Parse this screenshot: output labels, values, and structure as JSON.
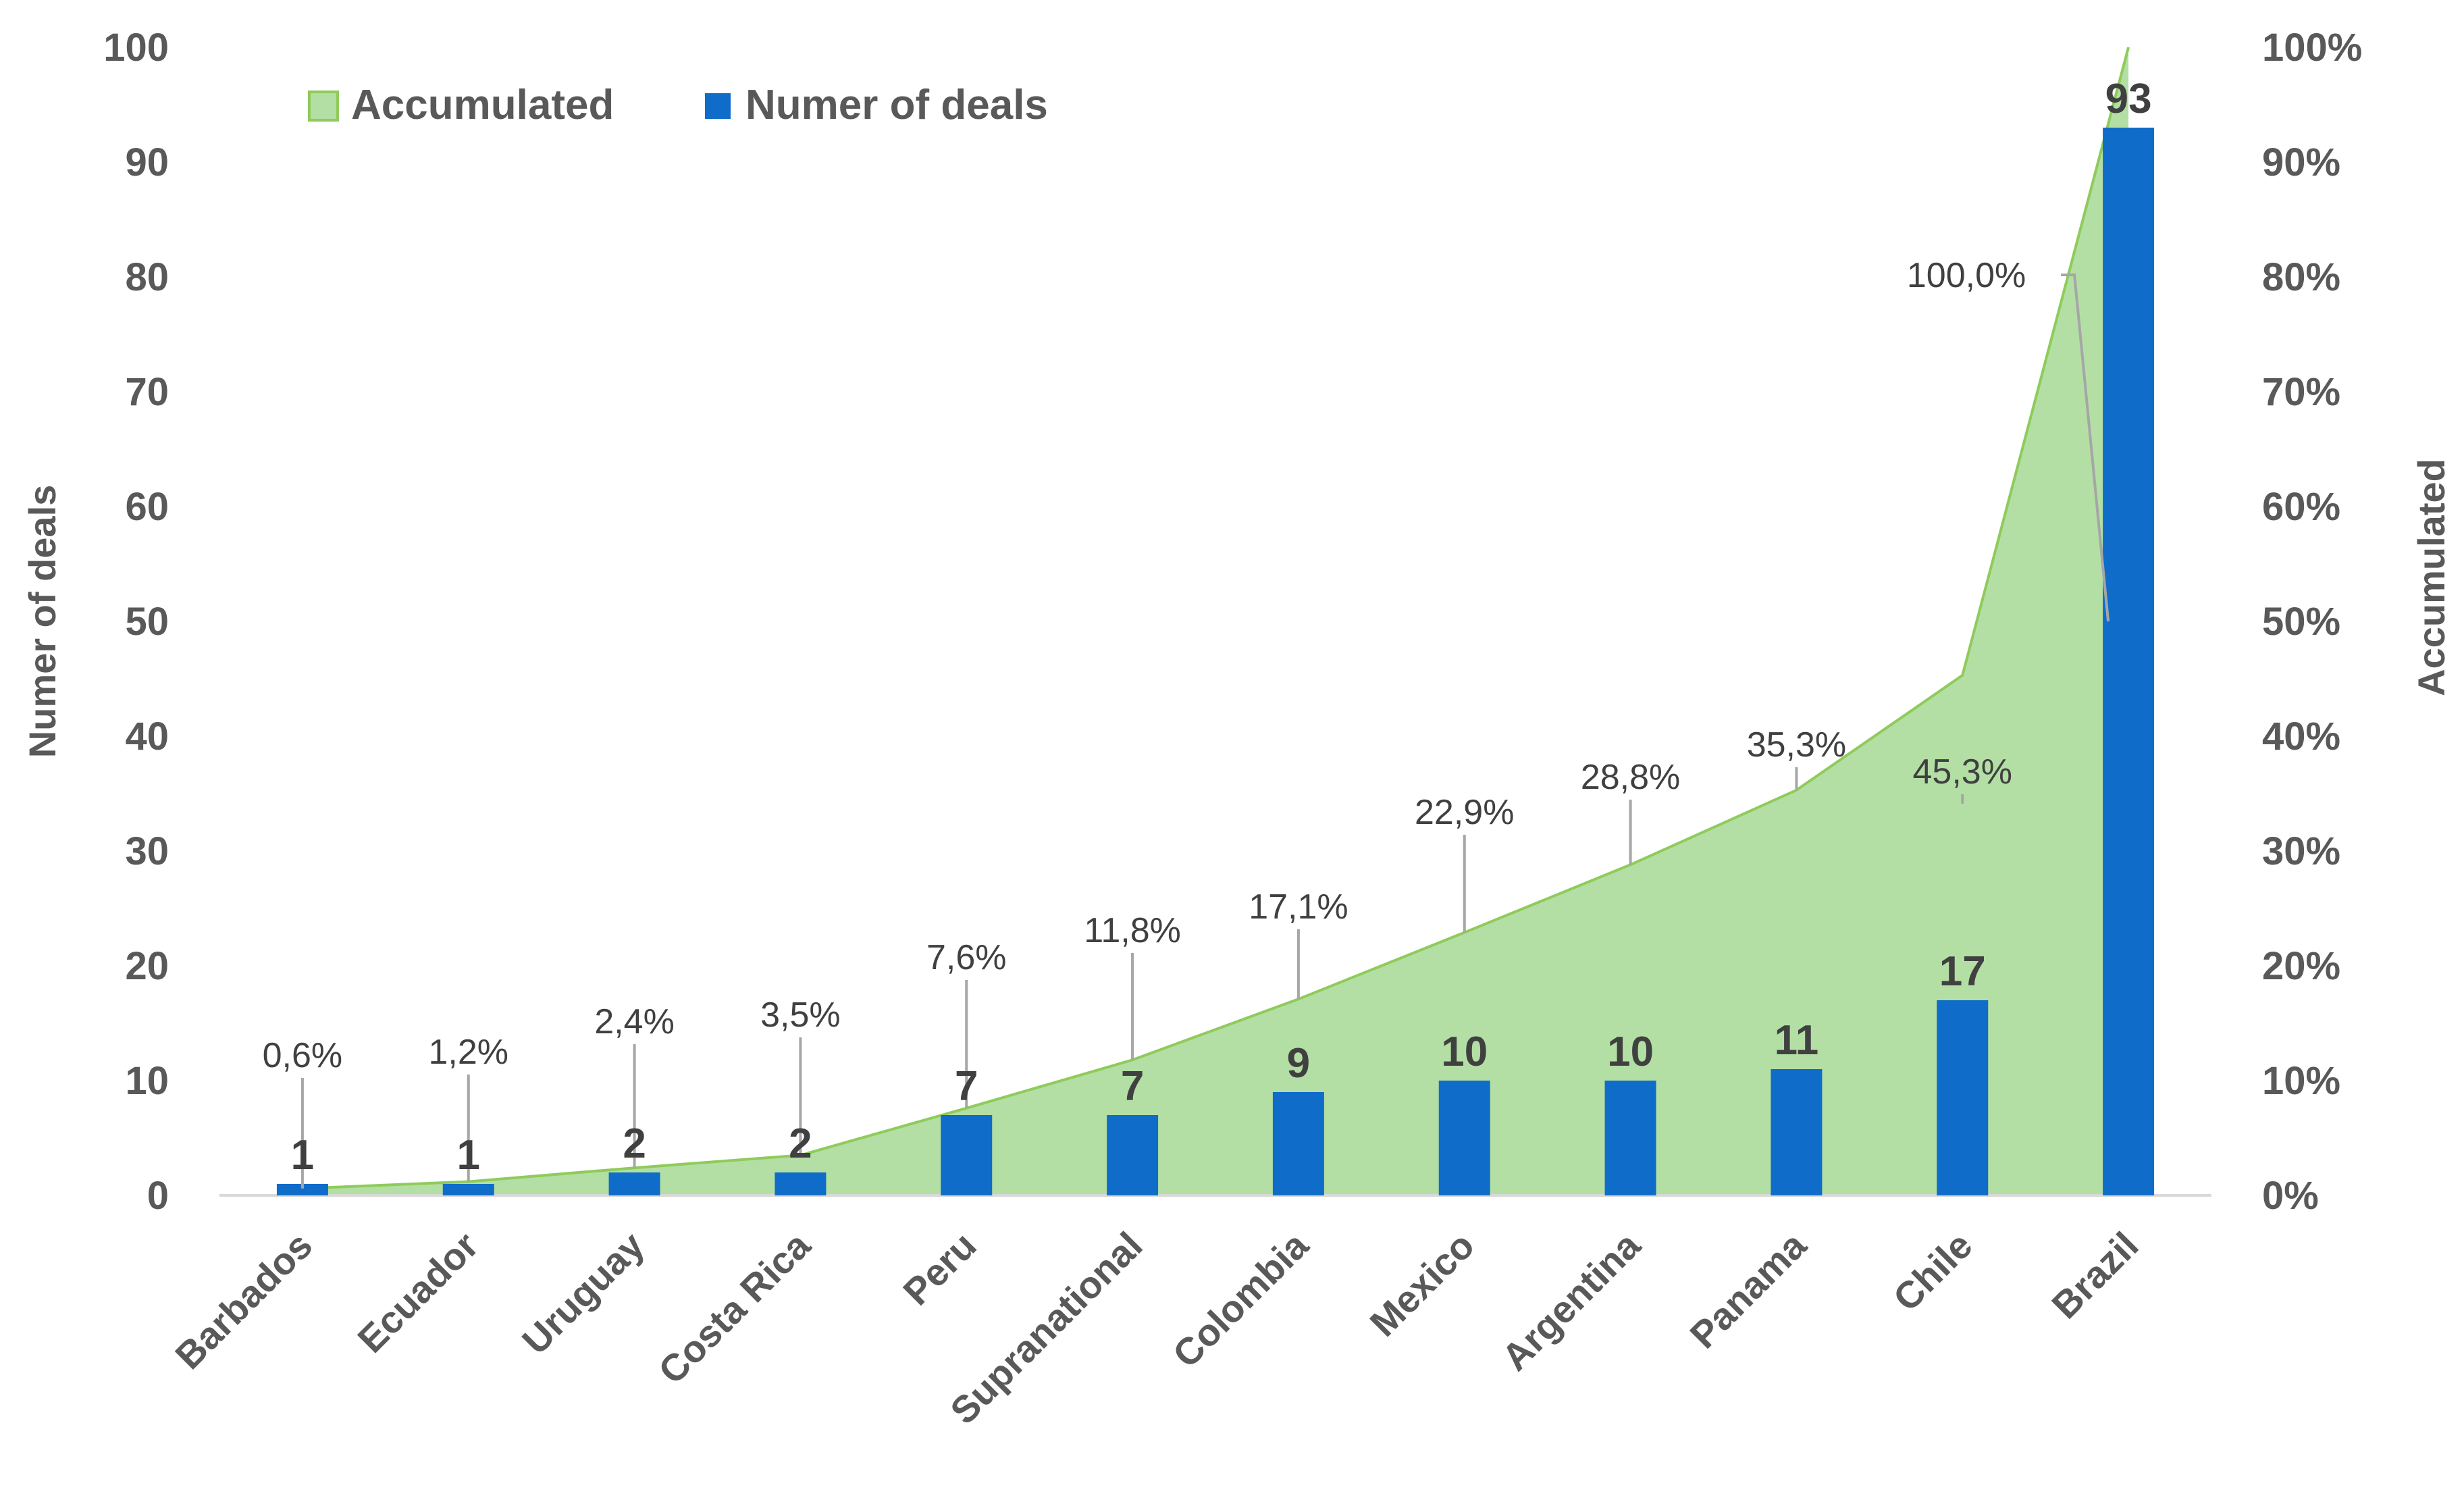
{
  "chart_data": {
    "type": "bar",
    "categories": [
      "Barbados",
      "Ecuador",
      "Uruguay",
      "Costa Rica",
      "Peru",
      "Supranational",
      "Colombia",
      "Mexico",
      "Argentina",
      "Panama",
      "Chile",
      "Brazil"
    ],
    "series": [
      {
        "name": "Numer of deals",
        "type": "bar",
        "axis": "left",
        "color": "#0f6cc9",
        "values": [
          1,
          1,
          2,
          2,
          7,
          7,
          9,
          10,
          10,
          11,
          17,
          93
        ],
        "labels": [
          "1",
          "1",
          "2",
          "2",
          "7",
          "7",
          "9",
          "10",
          "10",
          "11",
          "17",
          "93"
        ]
      },
      {
        "name": "Accumulated",
        "type": "area",
        "axis": "right",
        "color": "#b3dfa5",
        "edge_color": "#8fcb5a",
        "values": [
          0.6,
          1.2,
          2.4,
          3.5,
          7.6,
          11.8,
          17.1,
          22.9,
          28.8,
          35.3,
          45.3,
          100.0
        ],
        "labels": [
          "0,6%",
          "1,2%",
          "2,4%",
          "3,5%",
          "7,6%",
          "11,8%",
          "17,1%",
          "22,9%",
          "28,8%",
          "35,3%",
          "45,3%",
          "100,0%"
        ]
      }
    ],
    "y_left": {
      "label": "Numer of deals",
      "ylim": [
        0,
        100
      ],
      "ticks": [
        "0",
        "10",
        "20",
        "30",
        "40",
        "50",
        "60",
        "70",
        "80",
        "90",
        "100"
      ]
    },
    "y_right": {
      "label": "Accumulated",
      "ylim": [
        0,
        100
      ],
      "ticks": [
        "0%",
        "10%",
        "20%",
        "30%",
        "40%",
        "50%",
        "60%",
        "70%",
        "80%",
        "90%",
        "100%"
      ]
    },
    "title": "",
    "xlabel": "",
    "grid": false,
    "legend": {
      "position": "top-left",
      "entries": [
        "Accumulated",
        "Numer of deals"
      ]
    }
  }
}
